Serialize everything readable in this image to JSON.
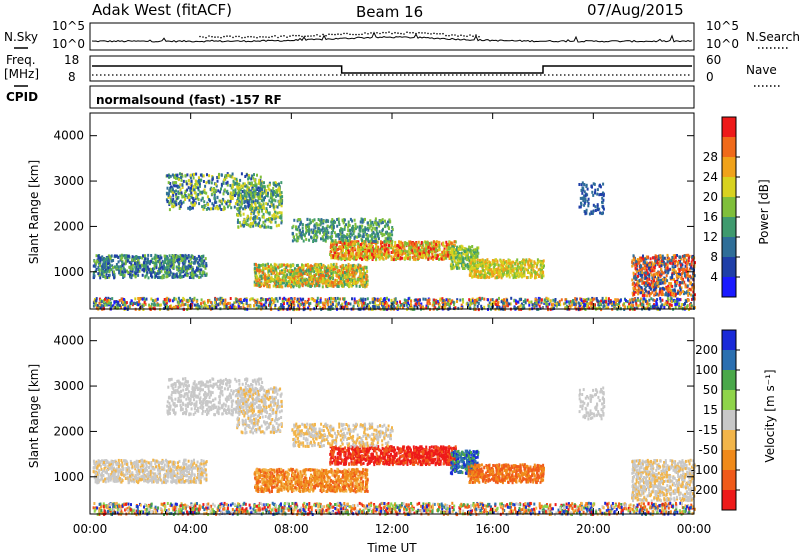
{
  "header": {
    "station": "Adak West (fitACF)",
    "beam": "Beam 16",
    "date": "07/Aug/2015"
  },
  "meta_panels": {
    "nsky_label": "N.Sky",
    "nsearch_label": "N.Search",
    "freq_label": "Freq.",
    "freq_unit": "[MHz]",
    "nave_label": "Nave",
    "cpid_label": "CPID",
    "cpid_text": "normalsound (fast) -157 RF",
    "noise_ticks_left": [
      "10^5",
      "10^0"
    ],
    "noise_ticks_right": [
      "10^5",
      "10^0"
    ],
    "freq_ticks": [
      "18",
      "8"
    ],
    "nave_ticks": [
      "60",
      "0"
    ]
  },
  "colors": {
    "power_scale": [
      "#1a1aff",
      "#1f3fa8",
      "#2f6e98",
      "#3f9a6e",
      "#7fbf3a",
      "#d8d21f",
      "#f0a21a",
      "#f06a1a",
      "#ee1a1a"
    ],
    "velocity_scale": [
      "#ee1a1a",
      "#f05a1a",
      "#f08a1a",
      "#f2b54a",
      "#c8c8c8",
      "#8fd44a",
      "#4aa84a",
      "#2a6fb0",
      "#1a2ad8"
    ]
  },
  "chart_data": [
    {
      "type": "heatmap",
      "name": "power",
      "ylabel": "Slant Range [km]",
      "x_ticks": [
        "00:00",
        "04:00",
        "08:00",
        "12:00",
        "16:00",
        "20:00",
        "00:00"
      ],
      "xlim_hours": [
        0,
        24
      ],
      "y_ticks": [
        1000,
        2000,
        3000,
        4000
      ],
      "ylim": [
        180,
        4500
      ],
      "colorbar_label": "Power [dB]",
      "colorbar_ticks": [
        "4",
        "8",
        "12",
        "16",
        "20",
        "24",
        "28"
      ],
      "colorbar_range": [
        0,
        32
      ]
    },
    {
      "type": "heatmap",
      "name": "velocity",
      "ylabel": "Slant Range [km]",
      "x_ticks": [
        "00:00",
        "04:00",
        "08:00",
        "12:00",
        "16:00",
        "20:00",
        "00:00"
      ],
      "xlim_hours": [
        0,
        24
      ],
      "y_ticks": [
        1000,
        2000,
        3000,
        4000
      ],
      "ylim": [
        180,
        4500
      ],
      "xlabel": "Time UT",
      "colorbar_label": "Velocity [m s⁻¹]",
      "colorbar_ticks": [
        "200",
        "100",
        "50",
        "15",
        "-15",
        "-50",
        "-100",
        "-200"
      ]
    }
  ]
}
